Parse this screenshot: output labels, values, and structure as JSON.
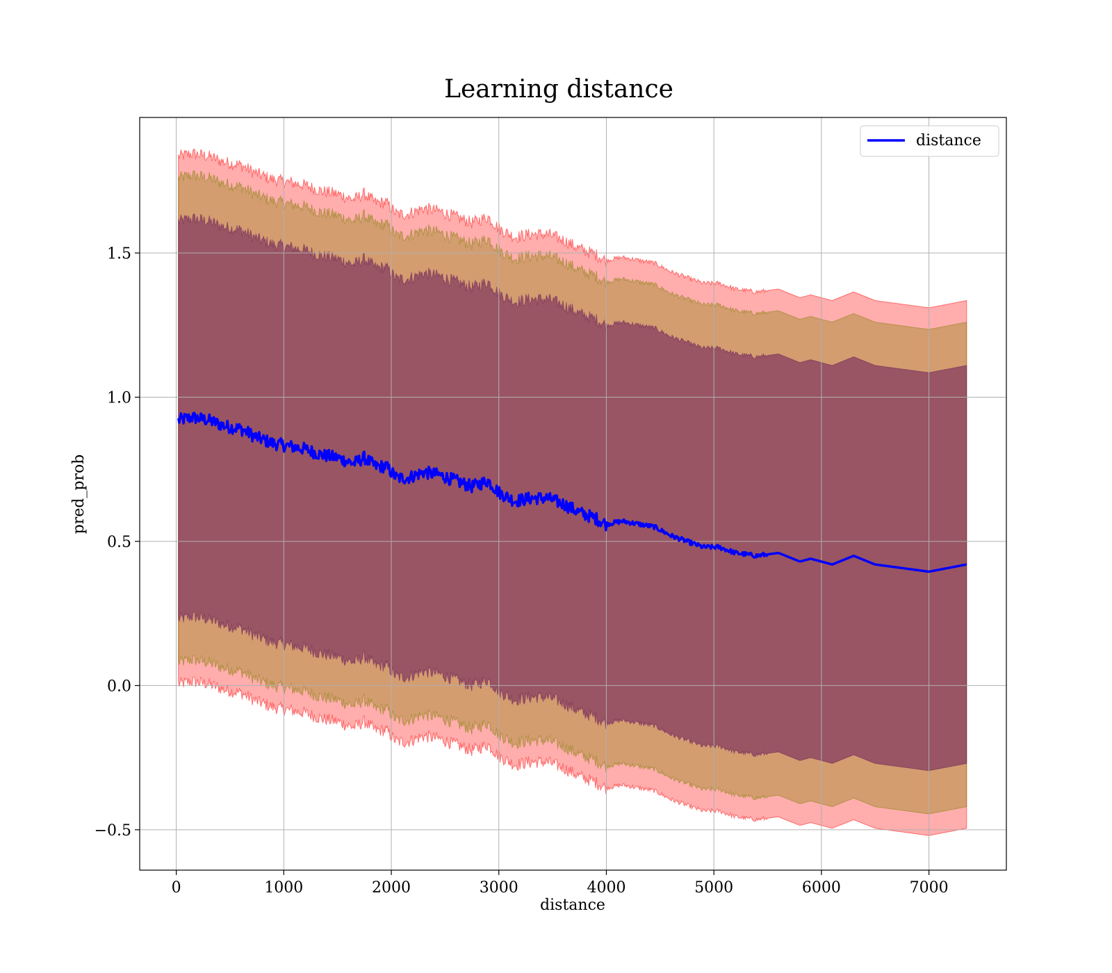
{
  "chart_data": {
    "type": "line",
    "title": "Learning distance",
    "xlabel": "distance",
    "ylabel": "pred_prob",
    "xlim": [
      -340,
      7720
    ],
    "ylim": [
      -0.64,
      1.97
    ],
    "xticks": [
      0,
      1000,
      2000,
      3000,
      4000,
      5000,
      6000,
      7000
    ],
    "xtick_labels": [
      "0",
      "1000",
      "2000",
      "3000",
      "4000",
      "5000",
      "6000",
      "7000"
    ],
    "yticks": [
      -0.5,
      0.0,
      0.5,
      1.0,
      1.5
    ],
    "ytick_labels": [
      "−0.5",
      "0.0",
      "0.5",
      "1.0",
      "1.5"
    ],
    "grid": true,
    "legend_position": "top-right",
    "x": [
      20,
      150,
      300,
      450,
      600,
      750,
      900,
      1050,
      1200,
      1350,
      1500,
      1650,
      1750,
      1850,
      1950,
      2050,
      2150,
      2300,
      2450,
      2600,
      2750,
      2900,
      3000,
      3150,
      3300,
      3450,
      3600,
      3750,
      3900,
      4000,
      4150,
      4300,
      4450,
      4600,
      4750,
      4900,
      5050,
      5200,
      5400,
      5600,
      5800,
      5900,
      6100,
      6300,
      6500,
      6700,
      7000,
      7350
    ],
    "series": [
      {
        "name": "distance",
        "color": "#0000ff",
        "values": [
          0.92,
          0.93,
          0.92,
          0.9,
          0.89,
          0.86,
          0.84,
          0.83,
          0.82,
          0.8,
          0.79,
          0.77,
          0.79,
          0.76,
          0.76,
          0.72,
          0.72,
          0.74,
          0.73,
          0.71,
          0.69,
          0.71,
          0.67,
          0.64,
          0.65,
          0.65,
          0.63,
          0.6,
          0.58,
          0.56,
          0.57,
          0.56,
          0.55,
          0.52,
          0.5,
          0.48,
          0.48,
          0.46,
          0.45,
          0.46,
          0.43,
          0.44,
          0.42,
          0.45,
          0.42,
          0.41,
          0.395,
          0.42
        ]
      }
    ],
    "bands": [
      {
        "color": "#ff0000",
        "opacity": 0.32,
        "half_width": 0.915
      },
      {
        "color": "#808000",
        "opacity": 0.35,
        "half_width": 0.84
      },
      {
        "color": "#6a1a5a",
        "opacity": 0.55,
        "half_width": 0.69
      }
    ]
  }
}
